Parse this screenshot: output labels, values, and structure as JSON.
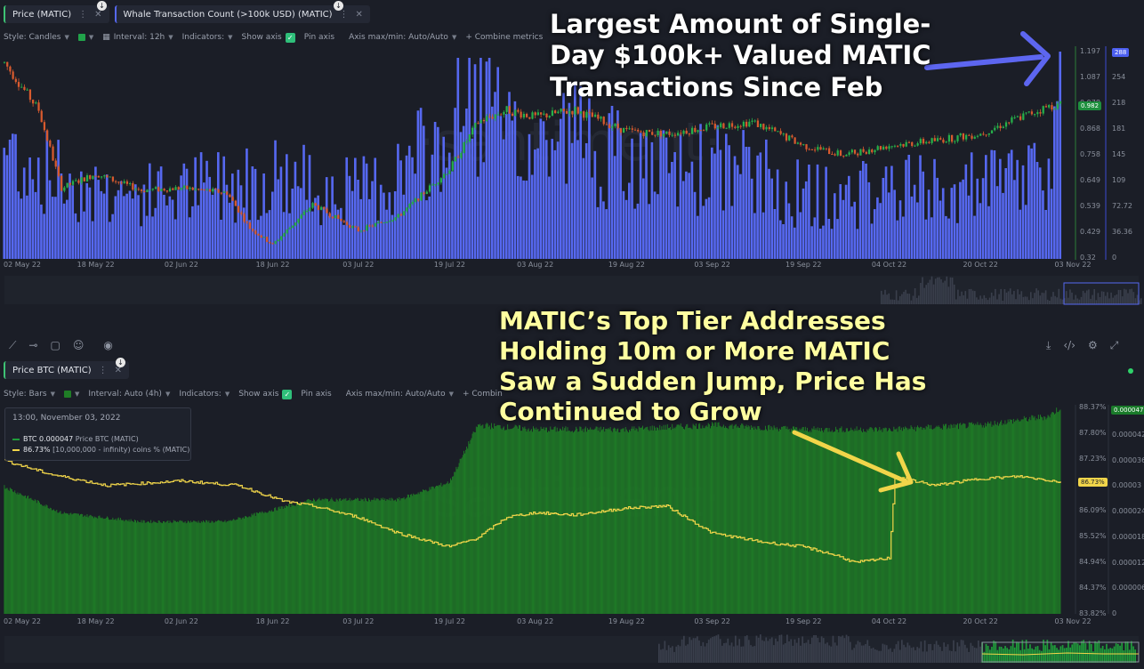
{
  "panel1": {
    "tabs": [
      {
        "label": "Price (MATIC)",
        "dots": "⋮",
        "close": "✕"
      },
      {
        "label": "Whale Transaction Count (>100k USD) (MATIC)",
        "dots": "⋮",
        "close": "✕"
      }
    ],
    "toolbar": {
      "style": "Style: Candles",
      "interval": "Interval: 12h",
      "indicators": "Indicators:",
      "show_axis": "Show axis",
      "pin_axis": "Pin axis",
      "axis_maxmin": "Axis max/min: Auto/Auto",
      "combine": "+ Combine metrics"
    },
    "annotation": [
      "Largest Amount of Single-",
      "Day $100k+ Valued MATIC",
      "Transactions Since Feb"
    ],
    "price_axis": [
      "1.197",
      "1.087",
      "0.978",
      "0.868",
      "0.758",
      "0.649",
      "0.539",
      "0.429",
      "0.32"
    ],
    "count_axis": [
      "288",
      "254",
      "218",
      "181",
      "145",
      "109",
      "72.72",
      "36.36",
      "0"
    ],
    "price_badge": "0.982",
    "count_badge": "288"
  },
  "panel2": {
    "tab": {
      "label": "Price BTC (MATIC)",
      "dots": "⋮",
      "close": "✕"
    },
    "toolbar": {
      "style": "Style: Bars",
      "interval": "Interval: Auto (4h)",
      "indicators": "Indicators:",
      "show_axis": "Show axis",
      "pin_axis": "Pin axis",
      "axis_maxmin": "Axis max/min: Auto/Auto",
      "combine": "+ Combin"
    },
    "tooltip": {
      "title": "13:00, November 03, 2022",
      "btc_label": "BTC 0.000047",
      "btc_metric": "Price BTC (MATIC)",
      "holders_label": "86.73%",
      "holders_metric": "[10,000,000 - infinity) coins % (MATIC)"
    },
    "annotation": [
      "MATIC’s Top Tier Addresses",
      "Holding 10m or More MATIC",
      "Saw a Sudden Jump, Price Has",
      "Continued to Grow"
    ],
    "pct_axis": [
      "88.37%",
      "87.80%",
      "87.23%",
      "86.66%",
      "86.09%",
      "85.52%",
      "84.94%",
      "84.37%",
      "83.82%"
    ],
    "btc_axis": [
      "0.000047",
      "0.000042",
      "0.000036",
      "0.00003",
      "0.000024",
      "0.000018",
      "0.000012",
      "0.000006",
      "0"
    ],
    "pct_badge": "86.73%",
    "btc_badge": "0.000047"
  },
  "date_labels": [
    "02 May 22",
    "18 May 22",
    "02 Jun 22",
    "18 Jun 22",
    "03 Jul 22",
    "19 Jul 22",
    "03 Aug 22",
    "19 Aug 22",
    "03 Sep 22",
    "19 Sep 22",
    "04 Oct 22",
    "20 Oct 22",
    "03 Nov 22"
  ],
  "colors": {
    "background": "#1b1e27",
    "whale_bars": "#5668f0",
    "candle_up": "#26b04a",
    "candle_down": "#d85a2e",
    "btc_bars": "#1f7d26",
    "holders_line": "#f1d54a",
    "annotation_white": "#ffffff",
    "annotation_yellow": "#ffffa0",
    "arrow_blue": "#5d66f0",
    "arrow_yellow": "#f1d54a"
  },
  "chart_data": [
    {
      "type": "bar",
      "title": "Whale Transaction Count (>100k USD) (MATIC)",
      "interval": "12h",
      "x_range": [
        "2022-05-02",
        "2022-11-03"
      ],
      "ylim": [
        0,
        288
      ],
      "anchor_values": [
        [
          "2022-05-02",
          160
        ],
        [
          "2022-05-10",
          120
        ],
        [
          "2022-05-18",
          100
        ],
        [
          "2022-05-26",
          90
        ],
        [
          "2022-06-02",
          95
        ],
        [
          "2022-06-10",
          110
        ],
        [
          "2022-06-18",
          120
        ],
        [
          "2022-06-25",
          105
        ],
        [
          "2022-07-03",
          95
        ],
        [
          "2022-07-10",
          120
        ],
        [
          "2022-07-19",
          170
        ],
        [
          "2022-07-24",
          240
        ],
        [
          "2022-07-30",
          150
        ],
        [
          "2022-08-03",
          160
        ],
        [
          "2022-08-10",
          180
        ],
        [
          "2022-08-19",
          130
        ],
        [
          "2022-08-26",
          120
        ],
        [
          "2022-09-03",
          130
        ],
        [
          "2022-09-10",
          120
        ],
        [
          "2022-09-19",
          90
        ],
        [
          "2022-09-26",
          85
        ],
        [
          "2022-10-04",
          100
        ],
        [
          "2022-10-12",
          95
        ],
        [
          "2022-10-20",
          100
        ],
        [
          "2022-10-27",
          110
        ],
        [
          "2022-11-02",
          150
        ],
        [
          "2022-11-03",
          288
        ]
      ]
    },
    {
      "type": "line",
      "title": "Price (MATIC)",
      "style": "candles",
      "interval": "12h",
      "x_range": [
        "2022-05-02",
        "2022-11-03"
      ],
      "ylim": [
        0.32,
        1.197
      ],
      "anchor_values": [
        [
          "2022-05-02",
          1.15
        ],
        [
          "2022-05-08",
          0.95
        ],
        [
          "2022-05-12",
          0.62
        ],
        [
          "2022-05-18",
          0.68
        ],
        [
          "2022-05-26",
          0.61
        ],
        [
          "2022-06-02",
          0.62
        ],
        [
          "2022-06-10",
          0.6
        ],
        [
          "2022-06-14",
          0.45
        ],
        [
          "2022-06-18",
          0.38
        ],
        [
          "2022-06-25",
          0.55
        ],
        [
          "2022-07-03",
          0.44
        ],
        [
          "2022-07-10",
          0.5
        ],
        [
          "2022-07-19",
          0.7
        ],
        [
          "2022-07-24",
          0.9
        ],
        [
          "2022-07-29",
          0.95
        ],
        [
          "2022-08-03",
          0.92
        ],
        [
          "2022-08-10",
          0.95
        ],
        [
          "2022-08-19",
          0.86
        ],
        [
          "2022-08-26",
          0.85
        ],
        [
          "2022-09-03",
          0.88
        ],
        [
          "2022-09-10",
          0.9
        ],
        [
          "2022-09-19",
          0.8
        ],
        [
          "2022-09-26",
          0.76
        ],
        [
          "2022-10-04",
          0.8
        ],
        [
          "2022-10-12",
          0.82
        ],
        [
          "2022-10-20",
          0.85
        ],
        [
          "2022-10-27",
          0.92
        ],
        [
          "2022-11-03",
          0.982
        ]
      ]
    },
    {
      "type": "bar",
      "title": "Price BTC (MATIC)",
      "interval": "Auto (4h)",
      "x_range": [
        "2022-05-02",
        "2022-11-03"
      ],
      "ylim": [
        0,
        4.7e-05
      ],
      "anchor_values": [
        [
          "2022-05-02",
          2.9e-05
        ],
        [
          "2022-05-12",
          2.3e-05
        ],
        [
          "2022-05-26",
          2.1e-05
        ],
        [
          "2022-06-10",
          2.1e-05
        ],
        [
          "2022-06-25",
          2.6e-05
        ],
        [
          "2022-07-10",
          2.6e-05
        ],
        [
          "2022-07-19",
          3e-05
        ],
        [
          "2022-07-24",
          4.3e-05
        ],
        [
          "2022-08-03",
          4.2e-05
        ],
        [
          "2022-08-19",
          4.2e-05
        ],
        [
          "2022-09-03",
          4.3e-05
        ],
        [
          "2022-09-19",
          4.2e-05
        ],
        [
          "2022-10-04",
          4.2e-05
        ],
        [
          "2022-10-20",
          4.3e-05
        ],
        [
          "2022-11-01",
          4.5e-05
        ],
        [
          "2022-11-03",
          4.7e-05
        ]
      ]
    },
    {
      "type": "line",
      "title": "[10,000,000 - infinity) coins % (MATIC)",
      "ylim": [
        83.82,
        88.37
      ],
      "anchor_values": [
        [
          "2022-05-02",
          87.2
        ],
        [
          "2022-05-10",
          86.9
        ],
        [
          "2022-05-20",
          86.65
        ],
        [
          "2022-06-02",
          86.75
        ],
        [
          "2022-06-12",
          86.65
        ],
        [
          "2022-06-20",
          86.3
        ],
        [
          "2022-06-25",
          86.2
        ],
        [
          "2022-07-03",
          85.95
        ],
        [
          "2022-07-10",
          85.6
        ],
        [
          "2022-07-19",
          85.3
        ],
        [
          "2022-07-24",
          85.5
        ],
        [
          "2022-07-29",
          85.95
        ],
        [
          "2022-08-03",
          86.05
        ],
        [
          "2022-08-10",
          86.0
        ],
        [
          "2022-08-19",
          86.15
        ],
        [
          "2022-08-26",
          86.2
        ],
        [
          "2022-09-03",
          85.6
        ],
        [
          "2022-09-12",
          85.4
        ],
        [
          "2022-09-19",
          85.3
        ],
        [
          "2022-09-25",
          85.1
        ],
        [
          "2022-09-28",
          84.95
        ],
        [
          "2022-10-04",
          85.05
        ],
        [
          "2022-10-05",
          86.85
        ],
        [
          "2022-10-12",
          86.65
        ],
        [
          "2022-10-20",
          86.8
        ],
        [
          "2022-10-27",
          86.85
        ],
        [
          "2022-11-03",
          86.73
        ]
      ]
    }
  ]
}
